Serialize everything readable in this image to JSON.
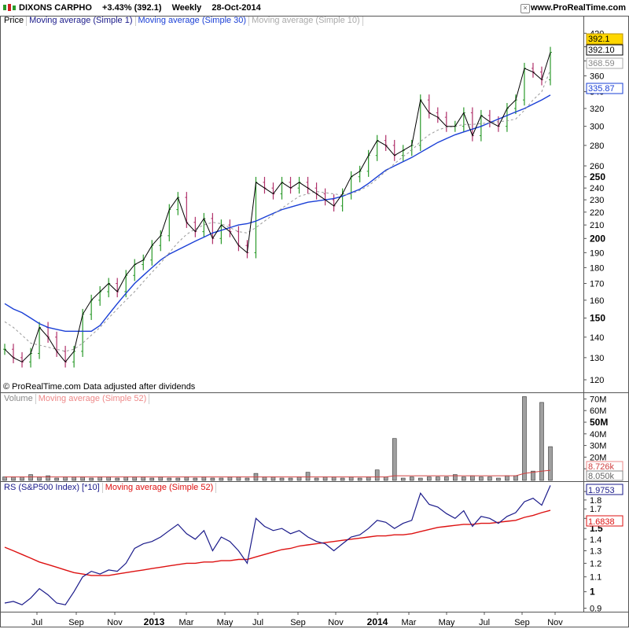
{
  "header": {
    "ticker": "DIXONS CARPHO",
    "change": "+3.43% (392.1)",
    "period": "Weekly",
    "date": "28-Oct-2014",
    "site": "www.ProRealTime.com"
  },
  "price_panel": {
    "legend": [
      "Price",
      "Moving average (Simple 1)",
      "Moving average (Simple 30)",
      "Moving average (Simple 10)"
    ],
    "footer": "© ProRealTime.com  Data adjusted after dividends",
    "badges": [
      "392.1",
      "392.10",
      "368.59",
      "335.87"
    ]
  },
  "volume_panel": {
    "legend": [
      "Volume",
      "Moving average (Simple 52)"
    ],
    "badges": [
      "8.726k",
      "8.050k"
    ]
  },
  "rs_panel": {
    "legend": [
      "RS (S&P500 Index) [*10]",
      "Moving average (Simple 52)"
    ],
    "badges": [
      "1.9753",
      "1.6838"
    ]
  },
  "colors": {
    "ma1": "#000000",
    "ma30": "#1a3fd6",
    "ma10": "#999999",
    "up": "#2a9a2a",
    "down": "#b0306a",
    "rs": "#1a1a8a",
    "rs_ma": "#dd1111",
    "volume": "#a0a0a0"
  },
  "chart_data": [
    {
      "type": "line",
      "panel": "price",
      "scale": "log",
      "ylim": [
        115,
        430
      ],
      "x_time_labels": [
        "Jul",
        "Sep",
        "Nov",
        "2013",
        "Mar",
        "May",
        "Jul",
        "Sep",
        "Nov",
        "2014",
        "Mar",
        "May",
        "Jul",
        "Sep",
        "Nov"
      ],
      "y_ticks": [
        420,
        400,
        380,
        360,
        340,
        320,
        300,
        280,
        260,
        250,
        240,
        230,
        220,
        210,
        200,
        190,
        180,
        170,
        160,
        150,
        140,
        130,
        120
      ],
      "y_ticks_bold": [
        250,
        200,
        150
      ],
      "series": [
        {
          "name": "Moving average (Simple 1)",
          "values": [
            134,
            130,
            128,
            132,
            145,
            140,
            133,
            128,
            133,
            152,
            160,
            165,
            170,
            165,
            175,
            182,
            185,
            195,
            202,
            222,
            232,
            212,
            205,
            215,
            200,
            210,
            205,
            195,
            190,
            245,
            240,
            235,
            245,
            240,
            245,
            240,
            235,
            230,
            225,
            235,
            250,
            255,
            270,
            285,
            280,
            270,
            275,
            280,
            330,
            315,
            310,
            300,
            300,
            315,
            290,
            312,
            305,
            300,
            320,
            330,
            370,
            365,
            355,
            392
          ]
        },
        {
          "name": "Moving average (Simple 10)",
          "values": [
            148,
            145,
            141,
            137,
            136,
            135,
            134,
            133,
            134,
            137,
            141,
            145,
            150,
            155,
            160,
            165,
            171,
            177,
            183,
            190,
            197,
            203,
            207,
            210,
            212,
            211,
            208,
            205,
            204,
            208,
            213,
            218,
            223,
            228,
            233,
            235,
            237,
            236,
            235,
            234,
            235,
            238,
            242,
            248,
            255,
            262,
            269,
            275,
            284,
            291,
            296,
            299,
            300,
            302,
            302,
            303,
            304,
            305,
            306,
            308,
            318,
            330,
            340,
            368
          ]
        },
        {
          "name": "Moving average (Simple 30)",
          "values": [
            158,
            155,
            153,
            150,
            147,
            145,
            144,
            143,
            143,
            143,
            143,
            146,
            152,
            158,
            164,
            170,
            175,
            180,
            185,
            189,
            192,
            195,
            198,
            201,
            204,
            206,
            208,
            210,
            211,
            213,
            216,
            219,
            222,
            224,
            226,
            228,
            229,
            230,
            231,
            233,
            236,
            239,
            244,
            250,
            256,
            260,
            264,
            268,
            273,
            278,
            283,
            287,
            291,
            294,
            297,
            300,
            304,
            308,
            312,
            316,
            320,
            325,
            330,
            335.87
          ]
        }
      ]
    },
    {
      "type": "bar",
      "panel": "volume",
      "y_ticks": [
        "70M",
        "60M",
        "50M",
        "40M",
        "30M",
        "20M",
        "10M"
      ],
      "y_ticks_bold": [
        "50M"
      ],
      "ylim": [
        0,
        75000000
      ],
      "series": [
        {
          "name": "Volume",
          "values": [
            3,
            3,
            3,
            5,
            3,
            4,
            2,
            3,
            3,
            3,
            2,
            3,
            3,
            2,
            3,
            3,
            3,
            2,
            3,
            2,
            2,
            3,
            2,
            3,
            2,
            2,
            3,
            3,
            2,
            6,
            3,
            3,
            2,
            2,
            3,
            7,
            2,
            3,
            3,
            2,
            3,
            2,
            3,
            9,
            3,
            36,
            2,
            3,
            2,
            3,
            3,
            3,
            5,
            3,
            4,
            3,
            3,
            2,
            4,
            4,
            72,
            8,
            67,
            29
          ]
        },
        {
          "name": "Moving average (Simple 52)",
          "values": [
            3,
            3,
            3,
            3,
            3,
            3,
            3,
            3,
            3,
            3,
            3,
            3,
            3,
            3,
            3,
            3,
            3,
            3,
            3,
            3,
            3,
            3,
            3,
            3,
            3,
            3,
            3,
            3,
            3,
            3,
            3,
            3,
            3,
            3,
            3,
            3,
            3,
            3,
            3,
            3,
            3,
            3,
            3,
            3,
            3,
            4,
            4,
            4,
            4,
            4,
            4,
            4,
            4,
            4,
            4,
            4,
            4,
            4,
            4,
            4,
            6,
            7,
            8,
            8.7
          ]
        }
      ]
    },
    {
      "type": "line",
      "panel": "rs",
      "scale": "log",
      "ylim": [
        0.88,
        2.02
      ],
      "y_ticks": [
        1.9,
        1.8,
        1.7,
        1.6,
        1.5,
        1.4,
        1.3,
        1.2,
        1.1,
        1,
        0.9
      ],
      "y_ticks_bold": [
        1.5,
        1
      ],
      "series": [
        {
          "name": "RS (S&P500 Index) [*10]",
          "values": [
            0.93,
            0.94,
            0.92,
            0.96,
            1.02,
            0.98,
            0.93,
            0.92,
            1.0,
            1.1,
            1.14,
            1.12,
            1.15,
            1.14,
            1.2,
            1.32,
            1.36,
            1.38,
            1.42,
            1.48,
            1.54,
            1.45,
            1.4,
            1.48,
            1.3,
            1.42,
            1.38,
            1.3,
            1.2,
            1.6,
            1.52,
            1.48,
            1.5,
            1.45,
            1.48,
            1.42,
            1.38,
            1.36,
            1.3,
            1.36,
            1.42,
            1.44,
            1.5,
            1.58,
            1.56,
            1.5,
            1.55,
            1.58,
            1.88,
            1.75,
            1.72,
            1.65,
            1.6,
            1.68,
            1.52,
            1.62,
            1.6,
            1.55,
            1.62,
            1.66,
            1.78,
            1.82,
            1.74,
            1.9753
          ]
        },
        {
          "name": "Moving average (Simple 52)",
          "values": [
            1.33,
            1.3,
            1.27,
            1.24,
            1.21,
            1.19,
            1.17,
            1.15,
            1.13,
            1.12,
            1.11,
            1.11,
            1.11,
            1.12,
            1.13,
            1.14,
            1.15,
            1.16,
            1.17,
            1.18,
            1.19,
            1.2,
            1.2,
            1.21,
            1.21,
            1.22,
            1.22,
            1.23,
            1.23,
            1.25,
            1.27,
            1.29,
            1.31,
            1.32,
            1.34,
            1.35,
            1.36,
            1.37,
            1.38,
            1.39,
            1.4,
            1.41,
            1.42,
            1.43,
            1.43,
            1.44,
            1.44,
            1.45,
            1.47,
            1.49,
            1.51,
            1.52,
            1.53,
            1.54,
            1.54,
            1.55,
            1.55,
            1.56,
            1.57,
            1.58,
            1.61,
            1.63,
            1.66,
            1.6838
          ]
        }
      ]
    }
  ]
}
